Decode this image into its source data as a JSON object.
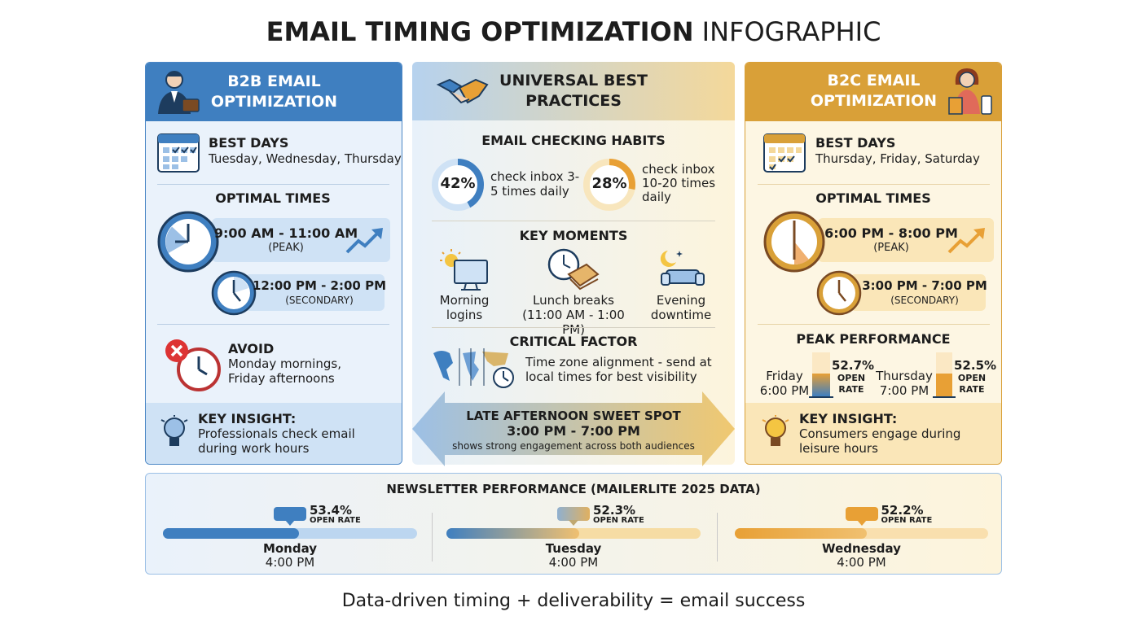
{
  "title": {
    "bold": "EMAIL TIMING OPTIMIZATION",
    "light": "INFOGRAPHIC"
  },
  "b2b": {
    "heading": "B2B EMAIL OPTIMIZATION",
    "best_days": {
      "label": "BEST DAYS",
      "text": "Tuesday, Wednesday, Thursday"
    },
    "optimal_times": {
      "heading": "OPTIMAL TIMES",
      "peak": {
        "time": "9:00 AM - 11:00 AM",
        "note": "(PEAK)"
      },
      "secondary": {
        "time": "12:00 PM - 2:00 PM",
        "note": "(SECONDARY)"
      }
    },
    "avoid": {
      "label": "AVOID",
      "text": "Monday mornings, Friday afternoons"
    },
    "insight": {
      "label": "KEY INSIGHT:",
      "text": "Professionals check email during work hours"
    }
  },
  "universal": {
    "heading": "UNIVERSAL BEST PRACTICES",
    "habits": {
      "heading": "EMAIL CHECKING HABITS",
      "items": [
        {
          "share": {
            "value": 42,
            "label": "42%"
          },
          "text": "check inbox 3-5 times daily"
        },
        {
          "share": {
            "value": 28,
            "label": "28%"
          },
          "text": "check inbox 10-20 times daily"
        }
      ]
    },
    "key_moments": {
      "heading": "KEY MOMENTS",
      "items": [
        "Morning logins",
        "Lunch breaks (11:00 AM - 1:00 PM)",
        "Evening downtime"
      ]
    },
    "critical_factor": {
      "heading": "CRITICAL FACTOR",
      "text": "Time zone alignment - send at local times for best visibility"
    },
    "sweet_spot": {
      "heading": "LATE AFTERNOON SWEET SPOT",
      "time": "3:00 PM - 7:00 PM",
      "text": "shows strong engagement across both audiences"
    }
  },
  "b2c": {
    "heading": "B2C EMAIL OPTIMIZATION",
    "best_days": {
      "label": "BEST DAYS",
      "text": "Thursday, Friday, Saturday"
    },
    "optimal_times": {
      "heading": "OPTIMAL TIMES",
      "peak": {
        "time": "6:00 PM - 8:00 PM",
        "note": "(PEAK)"
      },
      "secondary": {
        "time": "3:00 PM - 7:00 PM",
        "note": "(SECONDARY)"
      }
    },
    "peak_performance": {
      "heading": "PEAK PERFORMANCE",
      "items": [
        {
          "day": "Friday",
          "time": "6:00 PM",
          "rate": {
            "value": 52.7,
            "label": "52.7%"
          },
          "caption": "OPEN RATE"
        },
        {
          "day": "Thursday",
          "time": "7:00 PM",
          "rate": {
            "value": 52.5,
            "label": "52.5%"
          },
          "caption": "OPEN RATE"
        }
      ]
    },
    "insight": {
      "label": "KEY INSIGHT:",
      "text": "Consumers engage during leisure hours"
    }
  },
  "newsletter": {
    "heading": "NEWSLETTER PERFORMANCE (MAILERLITE 2025 DATA)",
    "items": [
      {
        "rate": {
          "value": 53.4,
          "label": "53.4%"
        },
        "caption": "OPEN RATE",
        "day": "Monday",
        "time": "4:00 PM"
      },
      {
        "rate": {
          "value": 52.3,
          "label": "52.3%"
        },
        "caption": "OPEN RATE",
        "day": "Tuesday",
        "time": "4:00 PM"
      },
      {
        "rate": {
          "value": 52.2,
          "label": "52.2%"
        },
        "caption": "OPEN RATE",
        "day": "Wednesday",
        "time": "4:00 PM"
      }
    ]
  },
  "footer": "Data-driven timing + deliverability = email success"
}
